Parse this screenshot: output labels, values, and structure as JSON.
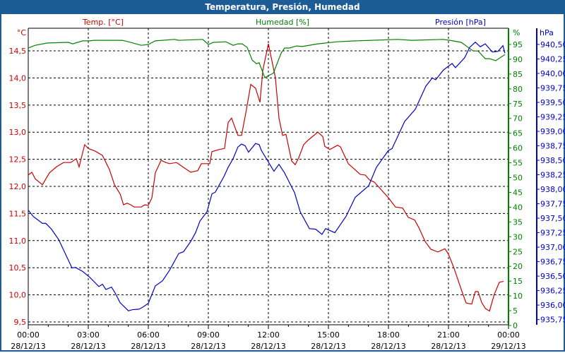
{
  "window": {
    "title": "Temperatura, Presión, Humedad"
  },
  "chart_data": {
    "type": "line",
    "title": "Temperatura, Presión, Humedad",
    "x_unit": "hours since 28/12/13 00:00",
    "xlim": [
      0,
      24
    ],
    "x_ticks": [
      {
        "h": 0,
        "time": "00:00",
        "date": "28/12/13"
      },
      {
        "h": 3,
        "time": "03:00",
        "date": "28/12/13"
      },
      {
        "h": 6,
        "time": "06:00",
        "date": "28/12/13"
      },
      {
        "h": 9,
        "time": "09:00",
        "date": "28/12/13"
      },
      {
        "h": 12,
        "time": "12:00",
        "date": "28/12/13"
      },
      {
        "h": 15,
        "time": "15:00",
        "date": "28/12/13"
      },
      {
        "h": 18,
        "time": "18:00",
        "date": "28/12/13"
      },
      {
        "h": 21,
        "time": "21:00",
        "date": "28/12/13"
      },
      {
        "h": 24,
        "time": "00:00",
        "date": "29/12/13"
      }
    ],
    "grid": true,
    "axes": {
      "temp": {
        "unit": "°C",
        "ylim": [
          9.448,
          14.917
        ],
        "ticks": [
          "9,5",
          "10,0",
          "10,5",
          "11,0",
          "11,5",
          "12,0",
          "12,5",
          "13,0",
          "13,5",
          "14,0",
          "14,5"
        ],
        "tick_values": [
          9.5,
          10,
          10.5,
          11,
          11.5,
          12,
          12.5,
          13,
          13.5,
          14,
          14.5
        ],
        "position": "left"
      },
      "hum": {
        "unit": "%",
        "ylim": [
          0.24,
          100.48
        ],
        "ticks": [
          "0",
          "5",
          "10",
          "15",
          "20",
          "25",
          "30",
          "35",
          "40",
          "45",
          "50",
          "55",
          "60",
          "65",
          "70",
          "75",
          "80",
          "85",
          "90",
          "95"
        ],
        "tick_values": [
          0,
          5,
          10,
          15,
          20,
          25,
          30,
          35,
          40,
          45,
          50,
          55,
          60,
          65,
          70,
          75,
          80,
          85,
          90,
          95
        ],
        "position": "right"
      },
      "pres": {
        "unit": "hPa",
        "ylim": [
          935.66,
          940.78
        ],
        "ticks": [
          "935,75",
          "936,00",
          "936,25",
          "936,50",
          "936,75",
          "937,00",
          "937,25",
          "937,50",
          "937,75",
          "938,00",
          "938,25",
          "938,50",
          "938,75",
          "939,00",
          "939,25",
          "939,50",
          "939,75",
          "940,00",
          "940,25",
          "940,50"
        ],
        "tick_values": [
          935.75,
          936,
          936.25,
          936.5,
          936.75,
          937,
          937.25,
          937.5,
          937.75,
          938,
          938.25,
          938.5,
          938.75,
          939,
          939.25,
          939.5,
          939.75,
          940,
          940.25,
          940.5
        ],
        "position": "far-right"
      }
    },
    "series": [
      {
        "name": "Temp. [°C]",
        "axis": "temp",
        "color": "#cc0000",
        "x": [
          0,
          0.18,
          0.35,
          0.71,
          1.06,
          1.41,
          1.76,
          2.12,
          2.4,
          2.54,
          2.82,
          3.0,
          3.35,
          3.71,
          4.06,
          4.31,
          4.59,
          4.76,
          4.94,
          5.12,
          5.29,
          5.65,
          5.82,
          6.0,
          6.18,
          6.35,
          6.64,
          6.88,
          7.06,
          7.41,
          7.76,
          8.12,
          8.47,
          8.65,
          9.07,
          9.18,
          9.53,
          9.81,
          9.99,
          10.16,
          10.48,
          10.66,
          10.87,
          11.12,
          11.36,
          11.58,
          11.72,
          12.0,
          12.35,
          12.53,
          12.71,
          12.88,
          13.16,
          13.34,
          13.52,
          13.76,
          14.01,
          14.47,
          14.72,
          14.82,
          15.07,
          15.46,
          15.6,
          15.99,
          16.59,
          16.84,
          17.05,
          17.29,
          18.0,
          18.35,
          18.71,
          18.99,
          19.31,
          19.52,
          19.84,
          20.12,
          20.47,
          20.82,
          21.0,
          21.28,
          21.64,
          21.88,
          22.16,
          22.34,
          22.48,
          22.66,
          22.84,
          23.05,
          23.29,
          23.54,
          23.75
        ],
        "y": [
          12.21,
          12.26,
          12.14,
          12.03,
          12.25,
          12.36,
          12.44,
          12.44,
          12.51,
          12.36,
          12.77,
          12.7,
          12.65,
          12.57,
          12.31,
          12.03,
          11.86,
          11.66,
          11.69,
          11.66,
          11.62,
          11.62,
          11.66,
          11.65,
          11.79,
          12.25,
          12.48,
          12.44,
          12.42,
          12.44,
          12.35,
          12.26,
          12.29,
          12.42,
          12.42,
          12.64,
          12.68,
          12.7,
          13.18,
          13.26,
          12.94,
          12.94,
          13.35,
          13.88,
          13.81,
          13.55,
          14.14,
          14.63,
          14.01,
          13.26,
          12.94,
          12.96,
          12.47,
          12.4,
          12.53,
          12.77,
          12.86,
          13.0,
          12.92,
          12.74,
          12.68,
          12.76,
          12.73,
          12.42,
          12.22,
          12.21,
          12.12,
          12.08,
          11.79,
          11.62,
          11.6,
          11.43,
          11.38,
          11.24,
          10.98,
          10.84,
          10.79,
          10.85,
          10.75,
          10.49,
          10.1,
          9.85,
          9.83,
          10.06,
          10.06,
          9.86,
          9.75,
          9.7,
          10.01,
          10.23,
          10.25
        ]
      },
      {
        "name": "Humedad [%]",
        "axis": "hum",
        "color": "#008000",
        "x": [
          0,
          0.35,
          0.95,
          2.01,
          2.22,
          2.72,
          3.07,
          3.28,
          4.69,
          5.01,
          5.65,
          6.0,
          6.35,
          7.31,
          7.52,
          8.72,
          9.0,
          9.25,
          9.88,
          10.24,
          10.48,
          10.69,
          10.94,
          11.19,
          11.4,
          11.54,
          11.82,
          12.25,
          12.64,
          12.81,
          13.06,
          13.41,
          13.69,
          14.47,
          15.42,
          16.34,
          18.46,
          19.17,
          20.72,
          21.07,
          21.64,
          21.99,
          22.24,
          22.48,
          22.84,
          23.05,
          23.36,
          23.82
        ],
        "y": [
          93.8,
          94.7,
          95.5,
          95.7,
          95.2,
          96.2,
          96.2,
          96.4,
          96.4,
          95.9,
          94.7,
          95.0,
          96.2,
          96.7,
          96.4,
          96.7,
          95.0,
          95.7,
          95.9,
          94.7,
          95.2,
          95.2,
          94.0,
          89.7,
          88.5,
          88.8,
          83.8,
          85.3,
          92.1,
          93.8,
          93.8,
          94.5,
          94.3,
          95.2,
          95.9,
          96.2,
          96.7,
          96.4,
          96.7,
          96.4,
          95.7,
          94.0,
          92.8,
          92.8,
          90.2,
          90.2,
          89.5,
          91.6
        ]
      },
      {
        "name": "Presión [hPa]",
        "axis": "pres",
        "color": "#0000cc",
        "x": [
          0,
          0.25,
          0.71,
          0.88,
          1.16,
          1.52,
          2.19,
          2.36,
          2.72,
          3.07,
          3.53,
          3.71,
          3.88,
          4.16,
          4.34,
          4.59,
          5.01,
          5.19,
          5.54,
          5.75,
          6.0,
          6.35,
          6.71,
          7.06,
          7.52,
          7.76,
          8.12,
          8.36,
          8.58,
          8.93,
          9.18,
          9.35,
          9.78,
          9.99,
          10.24,
          10.48,
          10.66,
          10.84,
          11.01,
          11.36,
          11.54,
          11.65,
          12.0,
          12.28,
          12.53,
          12.81,
          13.31,
          13.59,
          14.05,
          14.36,
          14.68,
          14.86,
          15.32,
          15.88,
          16.34,
          17.01,
          17.4,
          18.0,
          18.18,
          18.81,
          19.34,
          19.87,
          20.19,
          20.36,
          20.75,
          21.18,
          21.35,
          21.81,
          22.06,
          22.34,
          22.59,
          22.84,
          23.19,
          23.47,
          23.72,
          23.82
        ],
        "y": [
          937.64,
          937.53,
          937.41,
          937.41,
          937.31,
          937.13,
          936.64,
          936.65,
          936.58,
          936.48,
          936.32,
          936.36,
          936.27,
          936.31,
          936.21,
          936.04,
          935.9,
          935.92,
          935.93,
          935.97,
          936.03,
          936.33,
          936.42,
          936.6,
          936.89,
          936.92,
          937.1,
          937.25,
          937.45,
          937.61,
          937.92,
          937.95,
          938.22,
          938.38,
          938.53,
          938.73,
          938.78,
          938.75,
          938.64,
          938.79,
          938.77,
          938.67,
          938.47,
          938.31,
          938.43,
          938.28,
          937.94,
          937.61,
          937.32,
          937.31,
          937.22,
          937.32,
          937.25,
          937.53,
          937.86,
          938.06,
          938.38,
          938.67,
          938.7,
          939.17,
          939.38,
          939.78,
          939.92,
          939.89,
          940.06,
          940.17,
          940.1,
          940.27,
          940.45,
          940.54,
          940.46,
          940.51,
          940.37,
          940.38,
          940.48,
          940.35
        ]
      }
    ]
  }
}
